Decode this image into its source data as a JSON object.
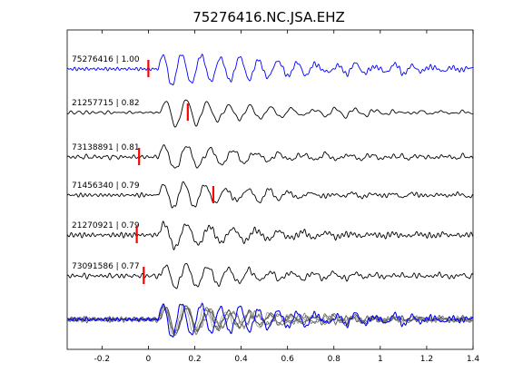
{
  "chart_data": {
    "type": "line",
    "title": "75276416.NC.JSA.EHZ",
    "xlim": [
      -0.35,
      1.4
    ],
    "xticks": [
      -0.2,
      0,
      0.2,
      0.4,
      0.6,
      0.8,
      1,
      1.2,
      1.4
    ],
    "xtick_labels": [
      "-0.2",
      "0",
      "0.2",
      "0.4",
      "0.6",
      "0.8",
      "1",
      "1.2",
      "1.4"
    ],
    "grid": false,
    "traces": [
      {
        "event_id": "75276416",
        "cc": "1.00",
        "label": "75276416 | 1.00",
        "pick_time": 0.0,
        "color": "#0000ff",
        "onset": 0.04,
        "amp": 1.0,
        "decay": 2.0,
        "tail": 0.3,
        "freq": 12,
        "seed": 1
      },
      {
        "event_id": "21257715",
        "cc": "0.82",
        "label": "21257715 | 0.82",
        "pick_time": 0.17,
        "color": "#000000",
        "onset": 0.05,
        "amp": 0.8,
        "decay": 2.3,
        "tail": 0.22,
        "freq": 11,
        "seed": 2
      },
      {
        "event_id": "73138891",
        "cc": "0.81",
        "label": "73138891 | 0.81",
        "pick_time": -0.04,
        "color": "#000000",
        "onset": 0.04,
        "amp": 0.75,
        "decay": 2.6,
        "tail": 0.18,
        "freq": 10,
        "seed": 3
      },
      {
        "event_id": "71456340",
        "cc": "0.79",
        "label": "71456340 | 0.79",
        "pick_time": 0.28,
        "color": "#000000",
        "onset": 0.04,
        "amp": 0.75,
        "decay": 2.4,
        "tail": 0.25,
        "freq": 11,
        "seed": 4
      },
      {
        "event_id": "21270921",
        "cc": "0.79",
        "label": "21270921 | 0.79",
        "pick_time": -0.05,
        "color": "#000000",
        "onset": 0.04,
        "amp": 0.78,
        "decay": 2.7,
        "tail": 0.15,
        "freq": 10,
        "seed": 5
      },
      {
        "event_id": "73091586",
        "cc": "0.77",
        "label": "73091586 | 0.77",
        "pick_time": -0.02,
        "color": "#000000",
        "onset": 0.05,
        "amp": 0.75,
        "decay": 2.5,
        "tail": 0.18,
        "freq": 11,
        "seed": 6
      }
    ],
    "stack": {
      "colors": [
        "#0000ff",
        "#444444",
        "#777777",
        "#999999",
        "#666666",
        "#555555",
        "#222222"
      ],
      "description": "overlay of all aligned traces"
    }
  }
}
